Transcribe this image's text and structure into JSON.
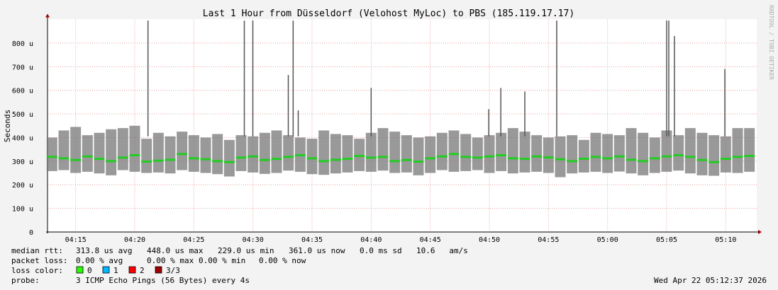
{
  "chart_data": {
    "type": "smoke",
    "title": "Last 1 Hour from Düsseldorf (Velohost MyLoc) to PBS (185.119.17.17)",
    "y_label": "Seconds",
    "side_note": "RRDTOOL / TOBI OETIKER",
    "x": [
      13,
      14,
      15,
      16,
      17,
      18,
      19,
      20,
      21,
      22,
      23,
      24,
      25,
      26,
      27,
      28,
      29,
      30,
      31,
      32,
      33,
      34,
      35,
      36,
      37,
      38,
      39,
      40,
      41,
      42,
      43,
      44,
      45,
      46,
      47,
      48,
      49,
      50,
      51,
      52,
      53,
      54,
      55,
      56,
      57,
      58,
      59,
      60,
      61,
      62,
      63,
      64,
      65,
      66,
      67,
      68,
      69,
      70,
      71,
      72
    ],
    "series": [
      {
        "name": "median",
        "color": "#22cc22",
        "values": [
          318,
          312,
          305,
          320,
          310,
          300,
          315,
          325,
          298,
          302,
          306,
          330,
          312,
          308,
          300,
          296,
          315,
          320,
          305,
          310,
          318,
          325,
          312,
          300,
          306,
          310,
          322,
          315,
          318,
          300,
          305,
          298,
          312,
          320,
          330,
          318,
          315,
          320,
          325,
          312,
          310,
          320,
          316,
          308,
          300,
          310,
          318,
          312,
          320,
          306,
          300,
          312,
          320,
          325,
          318,
          305,
          296,
          310,
          318,
          322
        ]
      },
      {
        "name": "min",
        "color": "#777777",
        "values": [
          258,
          262,
          250,
          255,
          248,
          240,
          262,
          255,
          250,
          252,
          248,
          262,
          255,
          250,
          245,
          235,
          258,
          252,
          246,
          250,
          260,
          255,
          245,
          242,
          248,
          252,
          258,
          255,
          260,
          250,
          252,
          240,
          250,
          262,
          255,
          258,
          262,
          250,
          258,
          248,
          252,
          255,
          250,
          232,
          248,
          252,
          255,
          250,
          256,
          248,
          240,
          250,
          255,
          260,
          248,
          240,
          238,
          252,
          250,
          255
        ]
      },
      {
        "name": "max",
        "color": "#777777",
        "values": [
          400,
          430,
          445,
          410,
          420,
          435,
          440,
          450,
          395,
          420,
          405,
          425,
          410,
          400,
          415,
          390,
          410,
          405,
          420,
          430,
          410,
          400,
          395,
          430,
          415,
          410,
          395,
          420,
          440,
          425,
          410,
          400,
          405,
          420,
          430,
          415,
          400,
          410,
          420,
          440,
          425,
          410,
          400,
          405,
          410,
          390,
          420,
          415,
          410,
          440,
          420,
          400,
          430,
          410,
          440,
          420,
          410,
          405,
          440,
          440
        ]
      }
    ],
    "spikes": {
      "color": "#555555",
      "x": [
        21.12,
        29.27,
        29.99,
        32.99,
        33.4,
        33.83,
        40.0,
        49.95,
        50.97,
        53.0,
        55.7,
        65.0,
        65.18,
        65.66,
        69.92
      ],
      "values": [
        895,
        895,
        895,
        665,
        895,
        515,
        610,
        520,
        610,
        595,
        895,
        895,
        895,
        830,
        690
      ]
    },
    "xlim": [
      12.62,
      72.62
    ],
    "xticks": [
      {
        "value": 15,
        "label": "04:15"
      },
      {
        "value": 20,
        "label": "04:20"
      },
      {
        "value": 25,
        "label": "04:25"
      },
      {
        "value": 30,
        "label": "04:30"
      },
      {
        "value": 35,
        "label": "04:35"
      },
      {
        "value": 40,
        "label": "04:40"
      },
      {
        "value": 45,
        "label": "04:45"
      },
      {
        "value": 50,
        "label": "04:50"
      },
      {
        "value": 55,
        "label": "04:55"
      },
      {
        "value": 60,
        "label": "05:00"
      },
      {
        "value": 65,
        "label": "05:05"
      },
      {
        "value": 70,
        "label": "05:10"
      }
    ],
    "ylim": [
      0,
      900
    ],
    "yticks": [
      0,
      {
        "value": 100,
        "label": "100 u"
      },
      {
        "value": 200,
        "label": "200 u"
      },
      {
        "value": 300,
        "label": "300 u"
      },
      {
        "value": 400,
        "label": "400 u"
      },
      {
        "value": 500,
        "label": "500 u"
      },
      {
        "value": 600,
        "label": "600 u"
      },
      {
        "value": 700,
        "label": "700 u"
      },
      {
        "value": 800,
        "label": "800 u"
      }
    ],
    "grid": true,
    "legend": {
      "rtt": [
        "median rtt:",
        "313.8 us avg",
        "448.0 us max",
        "229.0 us min",
        "361.0 us now",
        "0.0 ms sd",
        "10.6   am/s"
      ],
      "loss": [
        "packet loss:",
        "0.00 % avg",
        "0.00 % max",
        "0.00 % min",
        "0.00 % now"
      ],
      "loss_color_label": "loss color:",
      "loss_colors": [
        {
          "label": "0",
          "color": "#26ff00"
        },
        {
          "label": "1",
          "color": "#00b8ff"
        },
        {
          "label": "2",
          "color": "#ff0000"
        },
        {
          "label": "3/3",
          "color": "#a00000"
        }
      ],
      "probe_label": "probe:",
      "probe": "3 ICMP Echo Pings (56 Bytes) every 4s",
      "timestamp": "Wed Apr 22 05:12:37 2026"
    }
  }
}
